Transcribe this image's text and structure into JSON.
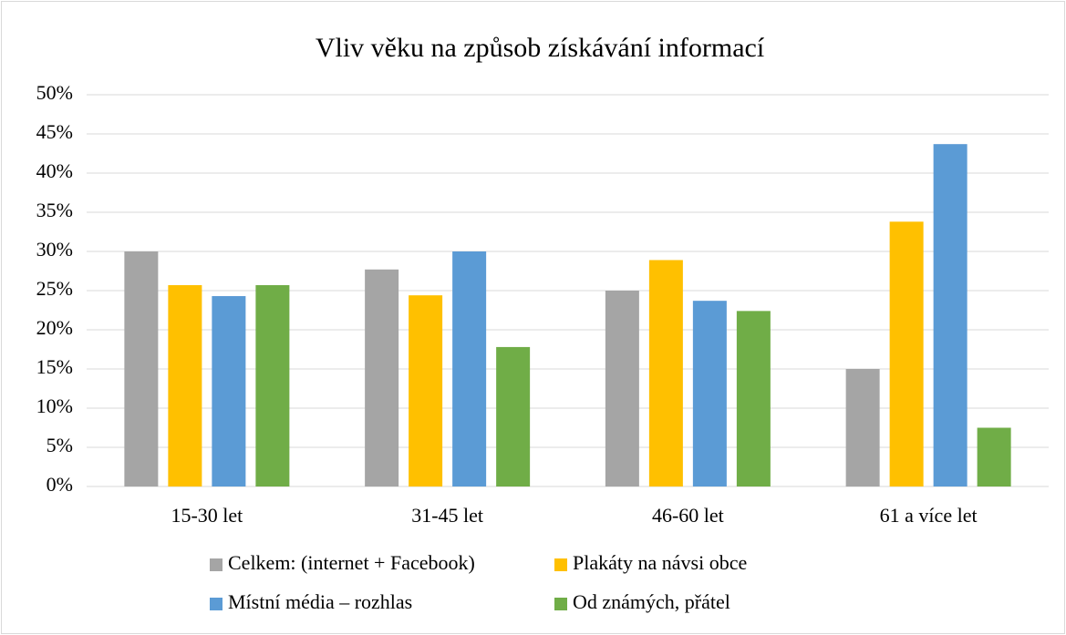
{
  "chart_data": {
    "type": "bar",
    "title": "Vliv věku na způsob získávání informací",
    "categories": [
      "15-30 let",
      "31-45 let",
      "46-60 let",
      "61 a více let"
    ],
    "series": [
      {
        "name": "Celkem: (internet + Facebook)",
        "color": "#a5a5a5",
        "values": [
          30,
          27.7,
          25,
          15
        ]
      },
      {
        "name": "Plakáty na návsi obce",
        "color": "#ffc000",
        "values": [
          25.7,
          24.4,
          28.9,
          33.8
        ]
      },
      {
        "name": "Místní média – rozhlas",
        "color": "#5b9bd5",
        "values": [
          24.3,
          30,
          23.7,
          43.7
        ]
      },
      {
        "name": "Od známých, přátel",
        "color": "#70ad47",
        "values": [
          25.7,
          17.8,
          22.4,
          7.5
        ]
      }
    ],
    "ylim": [
      0,
      50
    ],
    "yticks": [
      {
        "value": 0,
        "label": "0%"
      },
      {
        "value": 5,
        "label": "5%"
      },
      {
        "value": 10,
        "label": "10%"
      },
      {
        "value": 15,
        "label": "15%"
      },
      {
        "value": 20,
        "label": "20%"
      },
      {
        "value": 25,
        "label": "25%"
      },
      {
        "value": 30,
        "label": "30%"
      },
      {
        "value": 35,
        "label": "35%"
      },
      {
        "value": 40,
        "label": "40%"
      },
      {
        "value": 45,
        "label": "45%"
      },
      {
        "value": 50,
        "label": "50%"
      }
    ],
    "grid": true,
    "legend": "bottom"
  }
}
